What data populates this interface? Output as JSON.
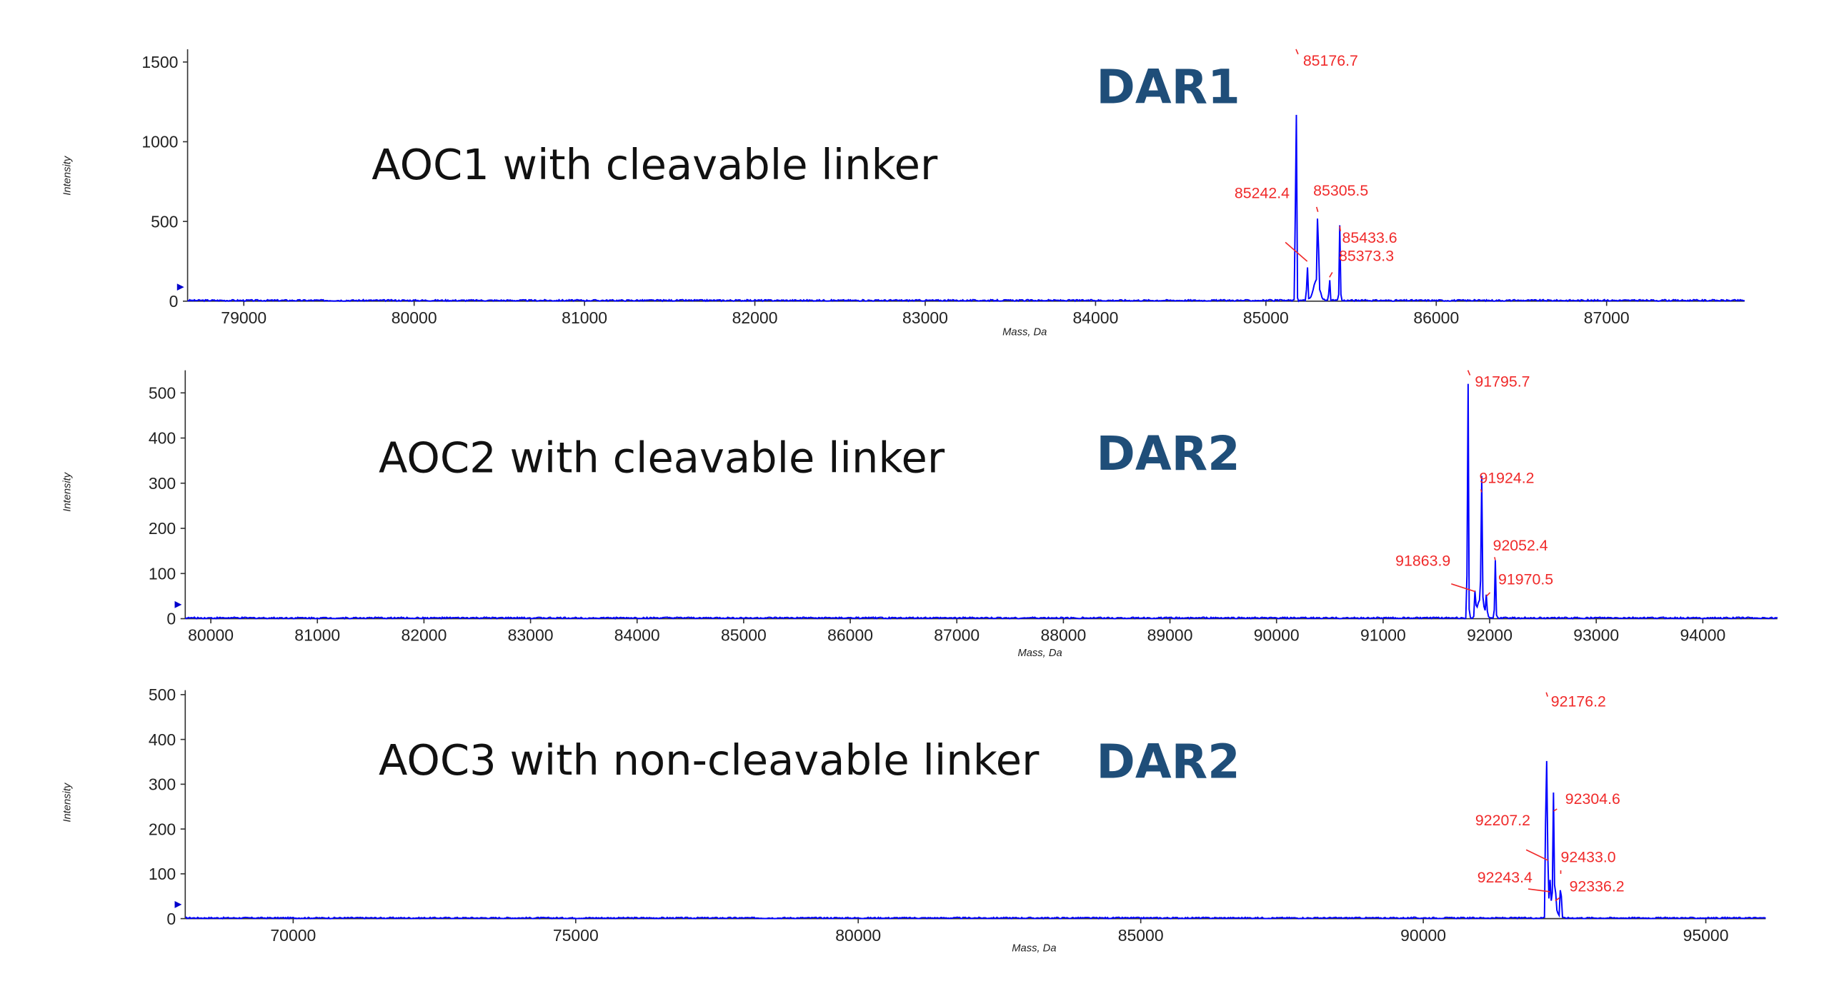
{
  "chart_data": [
    {
      "type": "line",
      "title": "AOC1 with cleavable linker",
      "badge": "DAR1",
      "xlabel": "Mass, Da",
      "ylabel": "Intensity",
      "xlim": [
        78670,
        87810
      ],
      "ylim": [
        0,
        1580
      ],
      "xticks": [
        79000,
        80000,
        81000,
        82000,
        83000,
        84000,
        85000,
        86000,
        87000
      ],
      "yticks": [
        0,
        500,
        1000,
        1500
      ],
      "peaks": [
        {
          "x": 85176.7,
          "y": 1580,
          "label": "85176.7"
        },
        {
          "x": 85242.4,
          "y": 250,
          "label": "85242.4"
        },
        {
          "x": 85305.5,
          "y": 560,
          "label": "85305.5"
        },
        {
          "x": 85373.3,
          "y": 150,
          "label": "85373.3"
        },
        {
          "x": 85433.6,
          "y": 470,
          "label": "85433.6"
        }
      ],
      "line_color": "#0000ff",
      "label_color": "#f02a2a"
    },
    {
      "type": "line",
      "title": "AOC2 with cleavable linker",
      "badge": "DAR2",
      "xlabel": "Mass, Da",
      "ylabel": "Intensity",
      "xlim": [
        79760,
        94700
      ],
      "ylim": [
        0,
        550
      ],
      "xticks": [
        80000,
        81000,
        82000,
        83000,
        84000,
        85000,
        86000,
        87000,
        88000,
        89000,
        90000,
        91000,
        92000,
        93000,
        94000
      ],
      "yticks": [
        0,
        100,
        200,
        300,
        400,
        500
      ],
      "peaks": [
        {
          "x": 91795.7,
          "y": 550,
          "label": "91795.7"
        },
        {
          "x": 91863.9,
          "y": 60,
          "label": "91863.9"
        },
        {
          "x": 91924.2,
          "y": 280,
          "label": "91924.2"
        },
        {
          "x": 91970.5,
          "y": 50,
          "label": "91970.5"
        },
        {
          "x": 92052.4,
          "y": 130,
          "label": "92052.4"
        }
      ],
      "line_color": "#0000ff",
      "label_color": "#f02a2a"
    },
    {
      "type": "line",
      "title": "AOC3 with non-cleavable linker",
      "badge": "DAR2",
      "xlabel": "Mass, Da",
      "ylabel": "Intensity",
      "xlim": [
        68090,
        96060
      ],
      "ylim": [
        0,
        510
      ],
      "xticks": [
        70000,
        75000,
        80000,
        85000,
        90000,
        95000
      ],
      "yticks": [
        0,
        100,
        200,
        300,
        400,
        500
      ],
      "peaks": [
        {
          "x": 92176.2,
          "y": 505,
          "label": "92176.2"
        },
        {
          "x": 92207.2,
          "y": 130,
          "label": "92207.2"
        },
        {
          "x": 92243.4,
          "y": 60,
          "label": "92243.4"
        },
        {
          "x": 92304.6,
          "y": 240,
          "label": "92304.6"
        },
        {
          "x": 92336.2,
          "y": 40,
          "label": "92336.2"
        },
        {
          "x": 92433.0,
          "y": 100,
          "label": "92433.0"
        }
      ],
      "line_color": "#0000ff",
      "label_color": "#f02a2a"
    }
  ]
}
